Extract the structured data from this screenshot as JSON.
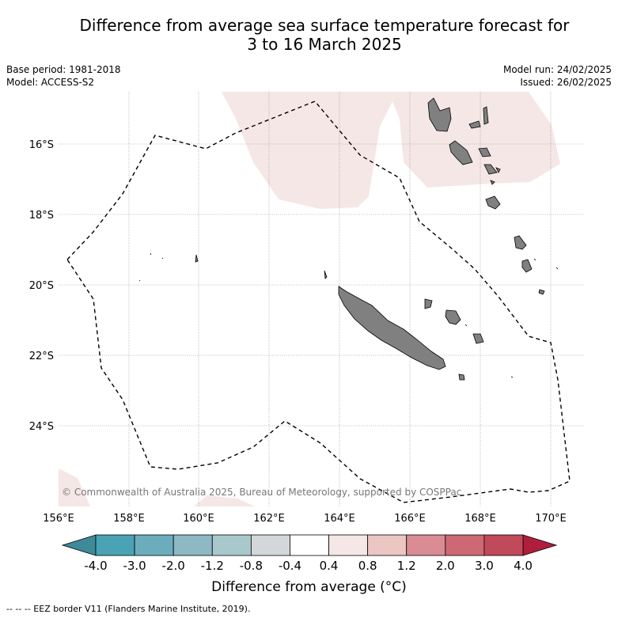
{
  "title": {
    "line1": "Difference from average sea surface temperature forecast for",
    "line2": "3 to 16 March 2025"
  },
  "meta_left": {
    "base_period": "Base period: 1981-2018",
    "model": "Model: ACCESS-S2"
  },
  "meta_right": {
    "model_run": "Model run: 24/02/2025",
    "issued": "Issued: 26/02/2025"
  },
  "map": {
    "lat_labels": [
      "16°S",
      "18°S",
      "20°S",
      "22°S",
      "24°S"
    ],
    "lon_labels": [
      "156°E",
      "158°E",
      "160°E",
      "162°E",
      "164°E",
      "166°E",
      "168°E",
      "170°E"
    ],
    "copyright": "© Commonwealth of Australia 2025, Bureau of Meteorology, supported by COSPPac",
    "colors": {
      "land": "#808080",
      "anomaly_light": "#f5e7e5",
      "grid": "#888888"
    }
  },
  "colorbar": {
    "ticks": [
      "-4.0",
      "-3.0",
      "-2.0",
      "-1.2",
      "-0.8",
      "-0.4",
      "0.4",
      "0.8",
      "1.2",
      "2.0",
      "3.0",
      "4.0"
    ],
    "colors": [
      "#3e8a98",
      "#4aa3b4",
      "#6badbd",
      "#8db8c4",
      "#a8c8cc",
      "#d2d8da",
      "#ffffff",
      "#f5e7e5",
      "#ebc6c2",
      "#d98c94",
      "#ce6874",
      "#c04a5a",
      "#b01e3e"
    ],
    "title": "Difference from average (°C)"
  },
  "footnote": "--  --  -- EEZ border V11 (Flanders Marine Institute, 2019)."
}
